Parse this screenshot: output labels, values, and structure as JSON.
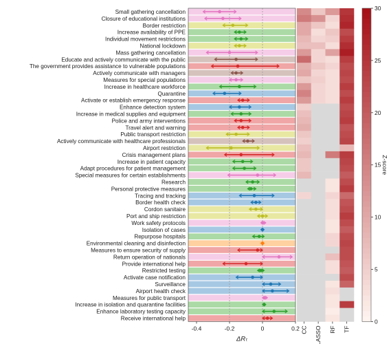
{
  "chart_data": [
    {
      "type": "forest",
      "xlabel": "ΔRₜ",
      "xlim": [
        -0.45,
        0.2
      ],
      "xticks": [
        "-0.4",
        "-0.2",
        "0",
        "0.2"
      ],
      "xtick_values": [
        -0.4,
        -0.2,
        0,
        0.2
      ],
      "reference_lines": [
        -0.2,
        0
      ],
      "category_colors": {
        "pink": "#e377c2",
        "yellow": "#bcbd22",
        "green": "#2ca02c",
        "brown": "#8c564b",
        "red": "#d62728",
        "blue": "#1f77b4",
        "orange": "#ff7f0e"
      },
      "band_colors": {
        "pink": "#f6cde8",
        "yellow": "#e8e8a3",
        "green": "#acdaa6",
        "brown": "#d6c2bd",
        "red": "#f0a6a6",
        "blue": "#a7c8e3",
        "orange": "#ffd0a0"
      },
      "rows": [
        {
          "label": "Small gathering cancellation",
          "cat": "pink",
          "mean": -0.26,
          "lo": -0.36,
          "hi": -0.16
        },
        {
          "label": "Closure of educational institutions",
          "cat": "pink",
          "mean": -0.24,
          "lo": -0.35,
          "hi": -0.13
        },
        {
          "label": "Border restriction",
          "cat": "yellow",
          "mean": -0.18,
          "lo": -0.24,
          "hi": -0.09
        },
        {
          "label": "Increase availability of PPE",
          "cat": "green",
          "mean": -0.14,
          "lo": -0.17,
          "hi": -0.1
        },
        {
          "label": "Individual movement restrictions",
          "cat": "green",
          "mean": -0.13,
          "lo": -0.17,
          "hi": -0.09
        },
        {
          "label": "National lockdown",
          "cat": "yellow",
          "mean": -0.14,
          "lo": -0.17,
          "hi": -0.1
        },
        {
          "label": "Mass gathering cancellation",
          "cat": "pink",
          "mean": -0.2,
          "lo": -0.34,
          "hi": -0.03
        },
        {
          "label": "Educate and actively communicate with the public",
          "cat": "brown",
          "mean": -0.16,
          "lo": -0.29,
          "hi": -0.03
        },
        {
          "label": "The government provides assistance to vulnerable populations",
          "cat": "red",
          "mean": -0.15,
          "lo": -0.31,
          "hi": 0.1
        },
        {
          "label": "Actively communicate with managers",
          "cat": "brown",
          "mean": -0.16,
          "lo": -0.19,
          "hi": -0.12
        },
        {
          "label": "Measures for special populations",
          "cat": "pink",
          "mean": -0.16,
          "lo": -0.2,
          "hi": -0.12
        },
        {
          "label": "Increase in healthcare workforce",
          "cat": "green",
          "mean": -0.14,
          "lo": -0.26,
          "hi": -0.04
        },
        {
          "label": "Quarantine",
          "cat": "blue",
          "mean": -0.23,
          "lo": -0.3,
          "hi": -0.13
        },
        {
          "label": "Activate or establish emergency response",
          "cat": "red",
          "mean": -0.12,
          "lo": -0.15,
          "hi": -0.08
        },
        {
          "label": "Enhance detection system",
          "cat": "blue",
          "mean": -0.14,
          "lo": -0.2,
          "hi": -0.07
        },
        {
          "label": "Increase in medical supplies and equipment",
          "cat": "green",
          "mean": -0.13,
          "lo": -0.19,
          "hi": -0.07
        },
        {
          "label": "Police and army interventions",
          "cat": "red",
          "mean": -0.13,
          "lo": -0.17,
          "hi": -0.07
        },
        {
          "label": "Travel alert and warning",
          "cat": "red",
          "mean": -0.12,
          "lo": -0.15,
          "hi": -0.08
        },
        {
          "label": "Public transport restriction",
          "cat": "yellow",
          "mean": -0.16,
          "lo": -0.22,
          "hi": -0.08
        },
        {
          "label": "Actively communicate with healthcare professionals",
          "cat": "brown",
          "mean": -0.09,
          "lo": -0.12,
          "hi": -0.05
        },
        {
          "label": "Airport restriction",
          "cat": "yellow",
          "mean": -0.19,
          "lo": -0.34,
          "hi": -0.02
        },
        {
          "label": "Crisis management plans",
          "cat": "red",
          "mean": -0.13,
          "lo": -0.23,
          "hi": 0.07
        },
        {
          "label": "Increase in patient capacity",
          "cat": "green",
          "mean": -0.12,
          "lo": -0.18,
          "hi": -0.06
        },
        {
          "label": "Adapt procedures for patient management",
          "cat": "green",
          "mean": -0.11,
          "lo": -0.18,
          "hi": -0.04
        },
        {
          "label": "Special measures for certain establishments",
          "cat": "pink",
          "mean": -0.03,
          "lo": -0.21,
          "hi": 0.08
        },
        {
          "label": "Research",
          "cat": "green",
          "mean": -0.06,
          "lo": -0.1,
          "hi": -0.02
        },
        {
          "label": "Personal protective measures",
          "cat": "green",
          "mean": -0.07,
          "lo": -0.09,
          "hi": -0.04
        },
        {
          "label": "Tracing and tracking",
          "cat": "blue",
          "mean": -0.05,
          "lo": -0.14,
          "hi": 0.07
        },
        {
          "label": "Border health check",
          "cat": "blue",
          "mean": -0.04,
          "lo": -0.07,
          "hi": -0.01
        },
        {
          "label": "Cordon sanitaire",
          "cat": "yellow",
          "mean": -0.04,
          "lo": -0.08,
          "hi": 0.0
        },
        {
          "label": "Port and ship restriction",
          "cat": "yellow",
          "mean": 0.0,
          "lo": -0.03,
          "hi": 0.03
        },
        {
          "label": "Work safety protocols",
          "cat": "pink",
          "mean": 0.0,
          "lo": -0.01,
          "hi": 0.02
        },
        {
          "label": "Isolation of cases",
          "cat": "blue",
          "mean": 0.0,
          "lo": -0.01,
          "hi": 0.01
        },
        {
          "label": "Repurpose hospitals",
          "cat": "green",
          "mean": -0.02,
          "lo": -0.06,
          "hi": 0.01
        },
        {
          "label": "Environmental cleaning and disinfection",
          "cat": "orange",
          "mean": 0.0,
          "lo": -0.01,
          "hi": 0.01
        },
        {
          "label": "Measures to ensure security of supply",
          "cat": "red",
          "mean": -0.03,
          "lo": -0.15,
          "hi": 0.0
        },
        {
          "label": "Return operation of nationals",
          "cat": "pink",
          "mean": 0.1,
          "lo": 0.0,
          "hi": 0.18
        },
        {
          "label": "Provide international help",
          "cat": "red",
          "mean": -0.1,
          "lo": -0.24,
          "hi": 0.0
        },
        {
          "label": "Restricted testing",
          "cat": "green",
          "mean": -0.01,
          "lo": -0.03,
          "hi": 0.01
        },
        {
          "label": "Activate case notification",
          "cat": "blue",
          "mean": -0.06,
          "lo": -0.16,
          "hi": 0.0
        },
        {
          "label": "Surveillance",
          "cat": "blue",
          "mean": 0.05,
          "lo": 0.0,
          "hi": 0.11
        },
        {
          "label": "Airport health check",
          "cat": "blue",
          "mean": 0.06,
          "lo": 0.0,
          "hi": 0.16
        },
        {
          "label": "Measures for public transport",
          "cat": "pink",
          "mean": 0.01,
          "lo": 0.0,
          "hi": 0.03
        },
        {
          "label": "Increase in isolation and quarantine facilities",
          "cat": "green",
          "mean": 0.01,
          "lo": 0.0,
          "hi": 0.02
        },
        {
          "label": "Enhance laboratory testing capacity",
          "cat": "green",
          "mean": 0.07,
          "lo": 0.0,
          "hi": 0.15
        },
        {
          "label": "Receive international help",
          "cat": "red",
          "mean": 0.03,
          "lo": 0.0,
          "hi": 0.06
        }
      ]
    },
    {
      "type": "heatmap",
      "columns": [
        "CC",
        "LASSO",
        "RF",
        "TF"
      ],
      "colorbar": {
        "label": "Z-score",
        "min": 0,
        "max": 30,
        "ticks": [
          "0",
          "5",
          "10",
          "15",
          "20",
          "25",
          "30"
        ],
        "low_color": "#fff5f0",
        "high_color": "#a50f15",
        "missing_color": "#d9d9d9"
      },
      "values": [
        [
          14,
          6,
          12,
          25
        ],
        [
          16,
          13,
          4,
          26
        ],
        [
          10,
          6,
          3,
          27
        ],
        [
          10,
          3,
          6,
          22
        ],
        [
          8,
          4,
          5,
          24
        ],
        [
          7,
          7,
          3,
          26
        ],
        [
          12,
          4,
          11,
          28
        ],
        [
          18,
          4,
          3,
          24
        ],
        [
          9,
          6,
          4,
          22
        ],
        [
          10,
          4,
          3,
          23
        ],
        [
          6,
          5,
          3,
          22
        ],
        [
          12,
          4,
          3,
          24
        ],
        [
          15,
          4,
          3,
          22
        ],
        [
          12,
          4,
          3,
          24
        ],
        [
          5,
          null,
          null,
          22
        ],
        [
          7,
          null,
          null,
          23
        ],
        [
          8,
          null,
          null,
          24
        ],
        [
          9,
          null,
          null,
          21
        ],
        [
          6,
          null,
          null,
          22
        ],
        [
          5,
          null,
          null,
          23
        ],
        [
          7,
          null,
          null,
          8
        ],
        [
          8,
          null,
          16,
          24
        ],
        [
          6,
          null,
          null,
          23
        ],
        [
          6,
          null,
          null,
          22
        ],
        [
          8,
          null,
          null,
          20
        ],
        [
          null,
          null,
          2,
          22
        ],
        [
          null,
          null,
          2,
          24
        ],
        [
          4,
          null,
          4,
          18
        ],
        [
          null,
          null,
          3,
          21
        ],
        [
          null,
          null,
          3,
          22
        ],
        [
          null,
          null,
          3,
          24
        ],
        [
          null,
          null,
          2,
          22
        ],
        [
          null,
          null,
          2,
          20
        ],
        [
          null,
          null,
          4,
          22
        ],
        [
          null,
          null,
          4,
          23
        ],
        [
          null,
          null,
          null,
          22
        ],
        [
          null,
          null,
          7,
          22
        ],
        [
          null,
          null,
          3,
          21
        ],
        [
          null,
          null,
          3,
          20
        ],
        [
          null,
          null,
          null,
          22
        ],
        [
          null,
          null,
          2,
          19
        ],
        [
          null,
          null,
          3,
          null
        ],
        [
          null,
          null,
          2,
          null
        ],
        [
          null,
          null,
          2,
          24
        ],
        [
          null,
          null,
          1,
          null
        ],
        [
          null,
          null,
          2,
          null
        ]
      ]
    }
  ]
}
